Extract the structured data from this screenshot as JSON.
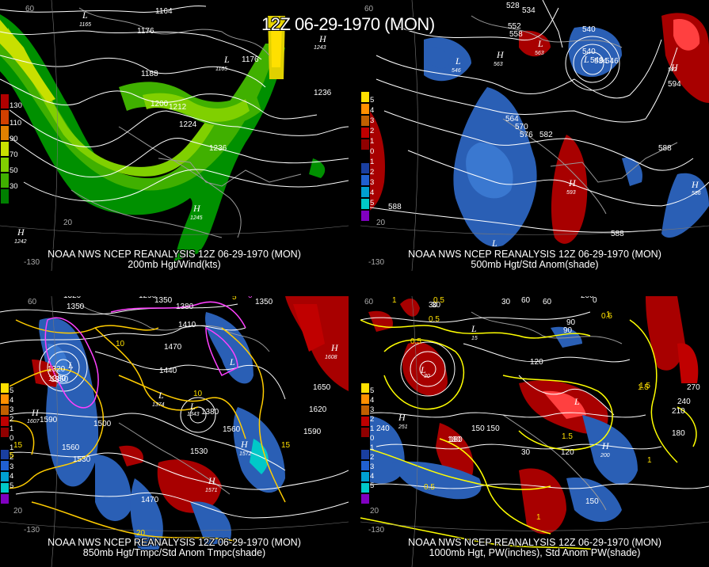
{
  "header": {
    "title": "12Z 06-29-1970 (MON)"
  },
  "panels": [
    {
      "source": "NOAA NWS NCEP REANALYSIS 12Z 06-29-1970 (MON)",
      "subtitle": "200mb Hgt/Wind(kts)",
      "colorbar": [
        "130",
        "110",
        "90",
        "70",
        "50",
        "30"
      ],
      "colorbar_colors": [
        "#b00000",
        "#d04000",
        "#e08000",
        "#c8e000",
        "#80d000",
        "#40b000",
        "#00a000",
        "#008000"
      ],
      "contour_labels": [
        "1164",
        "1176",
        "1188",
        "1200",
        "1212",
        "1224",
        "1236",
        "1176",
        "1236"
      ],
      "centers": [
        {
          "type": "H",
          "value": "1242"
        },
        {
          "type": "H",
          "value": "1245"
        },
        {
          "type": "H",
          "value": "1243"
        },
        {
          "type": "L",
          "value": "1165"
        },
        {
          "type": "L",
          "value": "1165"
        }
      ],
      "axis_labels": [
        "60",
        "-130",
        "20"
      ]
    },
    {
      "source": "NOAA NWS NCEP REANALYSIS 12Z 06-29-1970 (MON)",
      "subtitle": "500mb Hgt/Std Anom(shade)",
      "colorbar": [
        "5",
        "4",
        "3",
        "2",
        "1",
        "0",
        "1",
        "2",
        "3",
        "4",
        "5"
      ],
      "colorbar_colors": [
        "#ffe000",
        "#ff9000",
        "#c06000",
        "#c00000",
        "#900000",
        "#000000",
        "#1a3fa0",
        "#2060d0",
        "#00a0d0",
        "#00c8c8",
        "#8000c0"
      ],
      "contour_labels": [
        "528",
        "534",
        "540",
        "546",
        "552",
        "558",
        "564",
        "570",
        "576",
        "582",
        "588",
        "588",
        "594",
        "588",
        "534",
        "540",
        "546"
      ],
      "centers": [
        {
          "type": "L",
          "value": "528"
        },
        {
          "type": "L",
          "value": "546"
        },
        {
          "type": "H",
          "value": "563"
        },
        {
          "type": "L",
          "value": "563"
        },
        {
          "type": "H",
          "value": "592"
        },
        {
          "type": "H",
          "value": "593"
        },
        {
          "type": "H",
          "value": "586"
        },
        {
          "type": "L",
          "value": "592"
        }
      ],
      "axis_labels": [
        "60",
        "-130",
        "20"
      ]
    },
    {
      "source": "NOAA NWS NCEP REANALYSIS 12Z 06-29-1970 (MON)",
      "subtitle": "850mb Hgt/Tmpc/Std Anom Tmpc(shade)",
      "colorbar": [
        "5",
        "4",
        "3",
        "2",
        "1",
        "0",
        "1",
        "2",
        "3",
        "4",
        "5"
      ],
      "contour_labels": [
        "1320",
        "1350",
        "1290",
        "1350",
        "1380",
        "1410",
        "1470",
        "1440",
        "1320",
        "1350",
        "1380",
        "1500",
        "1560",
        "1530",
        "1590",
        "1560",
        "1620",
        "1650",
        "1590",
        "1470",
        "1530",
        "1350",
        "1380"
      ],
      "temp_labels": [
        "10",
        "5",
        "0",
        "10",
        "15",
        "20",
        "15",
        "5"
      ],
      "centers": [
        {
          "type": "H",
          "value": "1607"
        },
        {
          "type": "L",
          "value": "1300"
        },
        {
          "type": "L",
          "value": "1374"
        },
        {
          "type": "L",
          "value": "1343"
        },
        {
          "type": "H",
          "value": "1608"
        },
        {
          "type": "L",
          "value": "1371"
        },
        {
          "type": "H",
          "value": "1572"
        },
        {
          "type": "H",
          "value": "1571"
        }
      ],
      "axis_labels": [
        "60",
        "-130",
        "20"
      ]
    },
    {
      "source": "NOAA NWS NCEP REANALYSIS 12Z 06-29-1970 (MON)",
      "subtitle": "1000mb Hgt, PW(inches), Std Anom PW(shade)",
      "colorbar": [
        "5",
        "4",
        "3",
        "2",
        "1",
        "0",
        "1",
        "2",
        "3",
        "4",
        "5"
      ],
      "contour_labels": [
        "30",
        "60",
        "30",
        "90",
        "0",
        "200",
        "270",
        "240",
        "210",
        "180",
        "180",
        "150",
        "120",
        "90",
        "150",
        "120",
        "30",
        "240",
        "180",
        "150",
        "30",
        "60"
      ],
      "pw_labels": [
        "0.5",
        "0.5",
        "1",
        "1",
        "1.5",
        "0.5",
        "1.5",
        "0.5",
        "1",
        "0.5",
        "1.5",
        "1"
      ],
      "centers": [
        {
          "type": "L",
          "value": "30"
        },
        {
          "type": "L",
          "value": "15"
        },
        {
          "type": "H",
          "value": "251"
        },
        {
          "type": "H",
          "value": "200"
        },
        {
          "type": "L",
          "value": "30"
        }
      ],
      "axis_labels": [
        "60",
        "-130",
        "20"
      ]
    }
  ]
}
